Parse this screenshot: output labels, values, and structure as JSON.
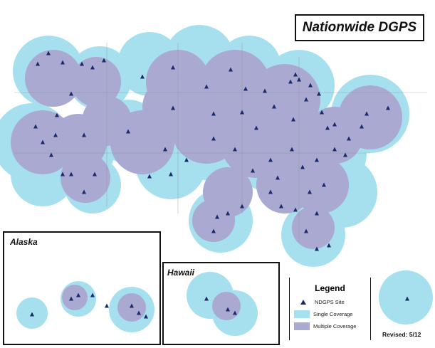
{
  "title": "Nationwide DGPS",
  "insets": {
    "alaska": "Alaska",
    "hawaii": "Hawaii"
  },
  "legend": {
    "title": "Legend",
    "items": [
      {
        "label": "NDGPS Site",
        "icon": "triangle",
        "color": "#1b2a6b"
      },
      {
        "label": "Single Coverage",
        "color": "#a6dfee"
      },
      {
        "label": "Multiple Coverage",
        "color": "#a9a9d2"
      }
    ]
  },
  "revised": "Revised: 5/12",
  "colors": {
    "single": "#a6dfee",
    "multiple": "#a9a9d2",
    "site": "#1b2a6b",
    "border": "#111111"
  }
}
